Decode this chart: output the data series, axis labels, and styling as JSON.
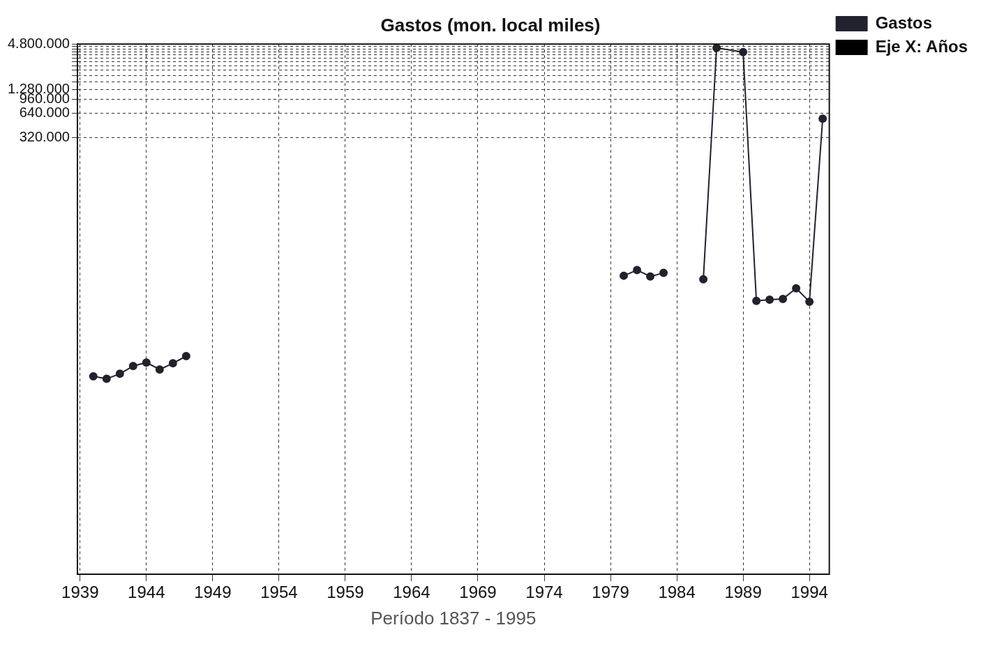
{
  "chart_data": {
    "type": "line",
    "title": "Gastos (mon. local miles)",
    "xlabel": "Período 1837 - 1995",
    "x": [
      1940,
      1941,
      1942,
      1943,
      1944,
      1945,
      1946,
      1947,
      1948,
      1980,
      1981,
      1982,
      1983,
      1984,
      1986,
      1987,
      1989,
      1990,
      1991,
      1992,
      1993,
      1994,
      1995
    ],
    "series": [
      {
        "name": "Gastos",
        "color": "#22222e",
        "values": [
          312,
          290,
          336,
          420,
          465,
          380,
          455,
          560,
          null,
          5780,
          6800,
          5660,
          6270,
          null,
          5200,
          4300000,
          3800000,
          2780,
          2890,
          2950,
          4000,
          2720,
          550000
        ]
      },
      {
        "name": "Eje X: Años",
        "type": "bar",
        "color": "#000000",
        "values": [
          null,
          null,
          null,
          null,
          null,
          null,
          null,
          null,
          null,
          null,
          null,
          null,
          null,
          null,
          null,
          null,
          null,
          null,
          null,
          null,
          null,
          null,
          null
        ]
      }
    ],
    "log": "y",
    "xlim": [
      1938.8,
      1995.5
    ],
    "xticks": [
      1939,
      1944,
      1949,
      1954,
      1959,
      1964,
      1969,
      1974,
      1979,
      1984,
      1989,
      1994
    ],
    "ylim": [
      1,
      4800000
    ],
    "yticks": [
      {
        "value": 320000,
        "label": "320.000"
      },
      {
        "value": 640000,
        "label": "640.000"
      },
      {
        "value": 960000,
        "label": "960.000"
      },
      {
        "value": 1280000,
        "label": "1.280.000"
      },
      {
        "value": 1600000,
        "label": null
      },
      {
        "value": 1920000,
        "label": null
      },
      {
        "value": 2240000,
        "label": null
      },
      {
        "value": 2560000,
        "label": null
      },
      {
        "value": 2880000,
        "label": null
      },
      {
        "value": 3200000,
        "label": null
      },
      {
        "value": 3520000,
        "label": null
      },
      {
        "value": 3840000,
        "label": null
      },
      {
        "value": 4160000,
        "label": null
      },
      {
        "value": 4480000,
        "label": null
      },
      {
        "value": 4800000,
        "label": "4.800.000"
      }
    ],
    "grid": true,
    "legend": "top right",
    "marker": "circle",
    "line_style": "solid"
  }
}
